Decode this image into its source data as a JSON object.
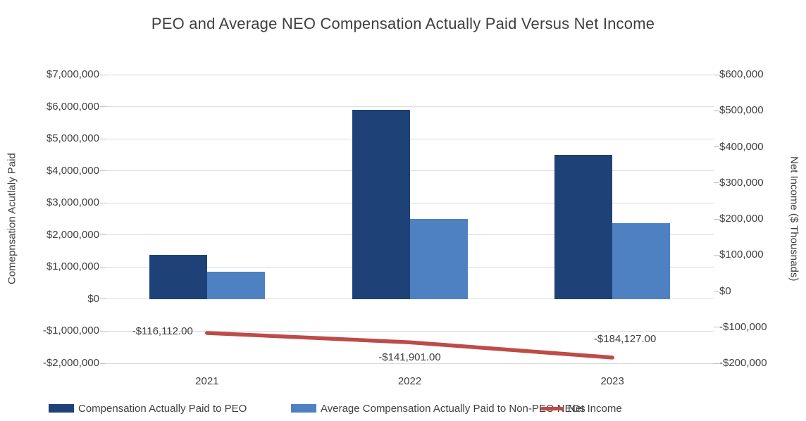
{
  "chart_data": {
    "type": "bar",
    "subtype": "grouped-bars-with-line-combo",
    "title": "PEO and Average NEO Compensation Actually Paid Versus Net Income",
    "categories": [
      "2021",
      "2022",
      "2023"
    ],
    "series": [
      {
        "name": "Compensation Actually Paid to PEO",
        "kind": "bar",
        "axis": "left",
        "color": "#1E4278",
        "values": [
          1375000,
          5900000,
          4500000
        ]
      },
      {
        "name": "Average Compensation Actually Paid to Non-PEO NEOs",
        "kind": "bar",
        "axis": "left",
        "color": "#4E81C1",
        "values": [
          860000,
          2500000,
          2375000
        ]
      },
      {
        "name": "Net Income",
        "kind": "line",
        "axis": "right",
        "color": "#BE4B48",
        "values": [
          -116112,
          -141901,
          -184127
        ],
        "data_labels": [
          "-$116,112.00",
          "-$141,901.00",
          "-$184,127.00"
        ],
        "data_label_positions": [
          "left",
          "below",
          "above"
        ]
      }
    ],
    "left_axis": {
      "title": "Comepnsation Acutlaly Paid",
      "min": -2000000,
      "max": 7000000,
      "step": 1000000,
      "tick_labels_top_to_bottom": [
        "$7,000,000",
        "$6,000,000",
        "$5,000,000",
        "$4,000,000",
        "$3,000,000",
        "$2,000,000",
        "$1,000,000",
        "$0",
        "-$1,000,000",
        "-$2,000,000"
      ]
    },
    "right_axis": {
      "title": "Net Income ($ Thousnads)",
      "min": -200000,
      "max": 600000,
      "step": 100000,
      "tick_labels_top_to_bottom": [
        "$600,000",
        "$500,000",
        "$400,000",
        "$300,000",
        "$200,000",
        "$100,000",
        "$0",
        "-$100,000",
        "-$200,000"
      ]
    },
    "legend": {
      "position": "bottom"
    },
    "grid": true,
    "colors": {
      "grid": "#D9D9D9",
      "text": "#404040",
      "background": "#FFFFFF"
    }
  }
}
